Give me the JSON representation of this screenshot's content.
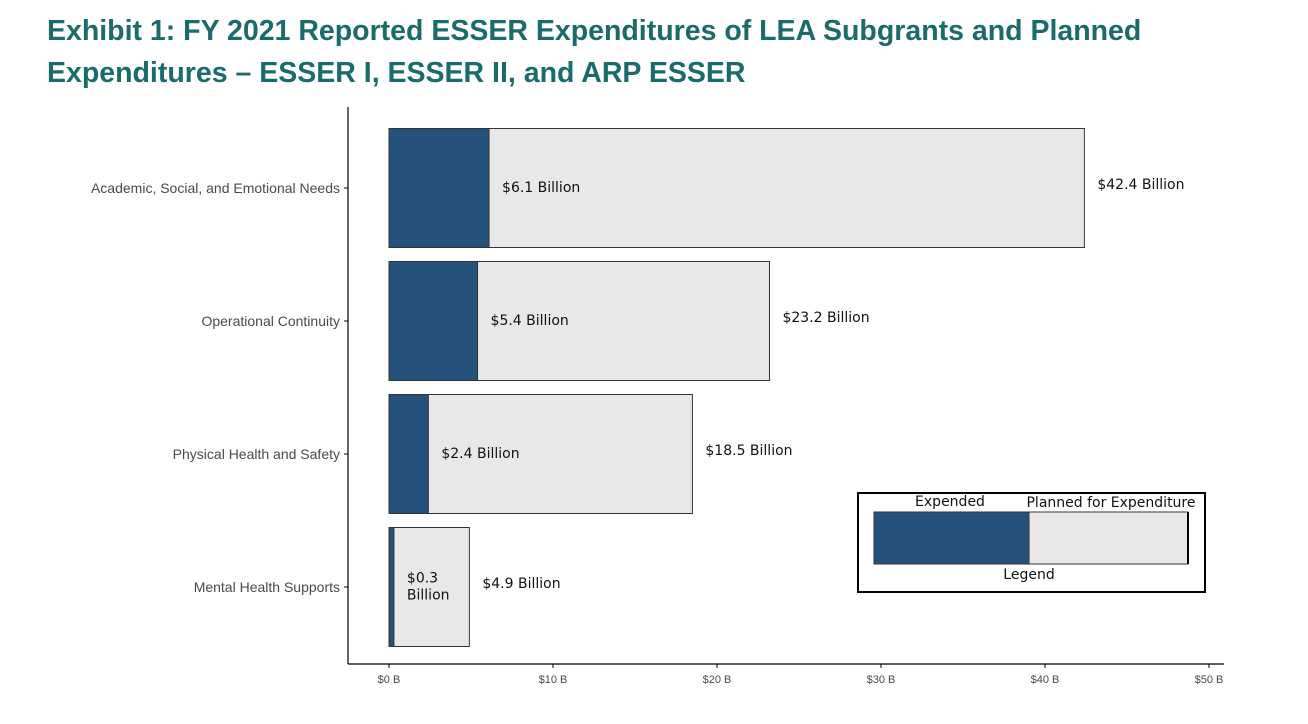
{
  "title_line1": "Exhibit 1: FY 2021 Reported ESSER Expenditures of LEA Subgrants and Planned",
  "title_line2": "Expenditures – ESSER I, ESSER II, and ARP ESSER",
  "colors": {
    "title": "#1a6b6b",
    "expended": "#24527a",
    "planned": "#e8e8e8"
  },
  "chart_data": {
    "type": "bar",
    "orientation": "horizontal",
    "stacked": true,
    "categories": [
      "Academic, Social, and Emotional Needs",
      "Operational Continuity",
      "Physical Health and Safety",
      "Mental Health Supports"
    ],
    "series": [
      {
        "name": "Expended",
        "values": [
          6.1,
          5.4,
          2.4,
          0.3
        ]
      },
      {
        "name": "Planned for Expenditure",
        "values": [
          42.4,
          23.2,
          18.5,
          4.9
        ]
      }
    ],
    "data_labels": {
      "expended": [
        [
          "$6.1 Billion"
        ],
        [
          "$5.4 Billion"
        ],
        [
          "$2.4 Billion"
        ],
        [
          "$0.3",
          "Billion"
        ]
      ],
      "planned": [
        "$42.4 Billion",
        "$23.2 Billion",
        "$18.5 Billion",
        "$4.9 Billion"
      ]
    },
    "xticks": [
      0,
      10,
      20,
      30,
      40,
      50
    ],
    "xtick_labels": [
      "$0 B",
      "$10 B",
      "$20 B",
      "$30 B",
      "$40 B",
      "$50 B"
    ],
    "xlim": [
      0,
      50
    ],
    "xlabel": "",
    "ylabel": "",
    "grid": false,
    "legend": {
      "position": "bottom-right",
      "title": "Legend",
      "expended_label": "Expended",
      "planned_label": "Planned for Expenditure"
    }
  }
}
